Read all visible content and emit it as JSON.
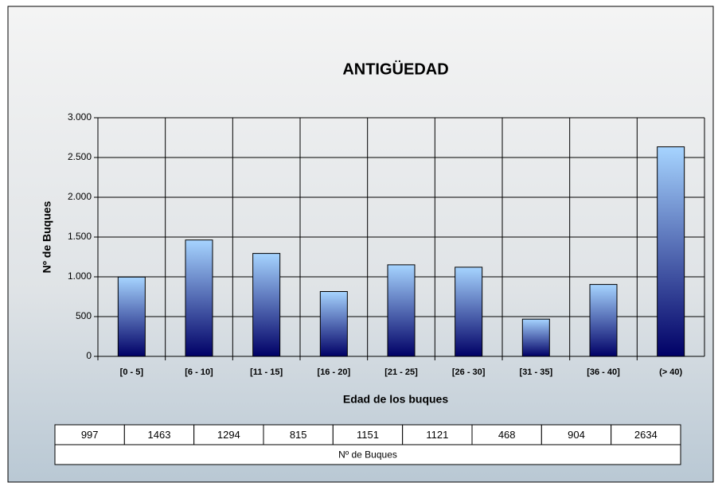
{
  "chart_data": {
    "type": "bar",
    "title": "ANTIGÜEDAD",
    "x_label": "Edad de los buques",
    "y_label": "Nº de Buques",
    "categories": [
      "[0 - 5]",
      "[6 - 10]",
      "[11 - 15]",
      "[16 - 20]",
      "[21 - 25]",
      "[26 - 30]",
      "[31 - 35]",
      "[36 - 40]",
      "(> 40)"
    ],
    "series": [
      {
        "name": "Nº de Buques",
        "color": [
          "#a6d4ff",
          "#000066"
        ],
        "values": [
          997,
          1463,
          1294,
          815,
          1151,
          1121,
          468,
          904,
          2634
        ]
      }
    ],
    "ylim": [
      0,
      3000
    ],
    "yticks": [
      0,
      {
        "value": 500,
        "label": "500"
      },
      {
        "value": 1000,
        "label": "1.000"
      },
      {
        "value": 1500,
        "label": "1.500"
      },
      {
        "value": 2000,
        "label": "2.000"
      },
      {
        "value": 2500,
        "label": "2.500"
      },
      {
        "value": 3000,
        "label": "3.000"
      }
    ],
    "grid": true,
    "data_table": true
  }
}
